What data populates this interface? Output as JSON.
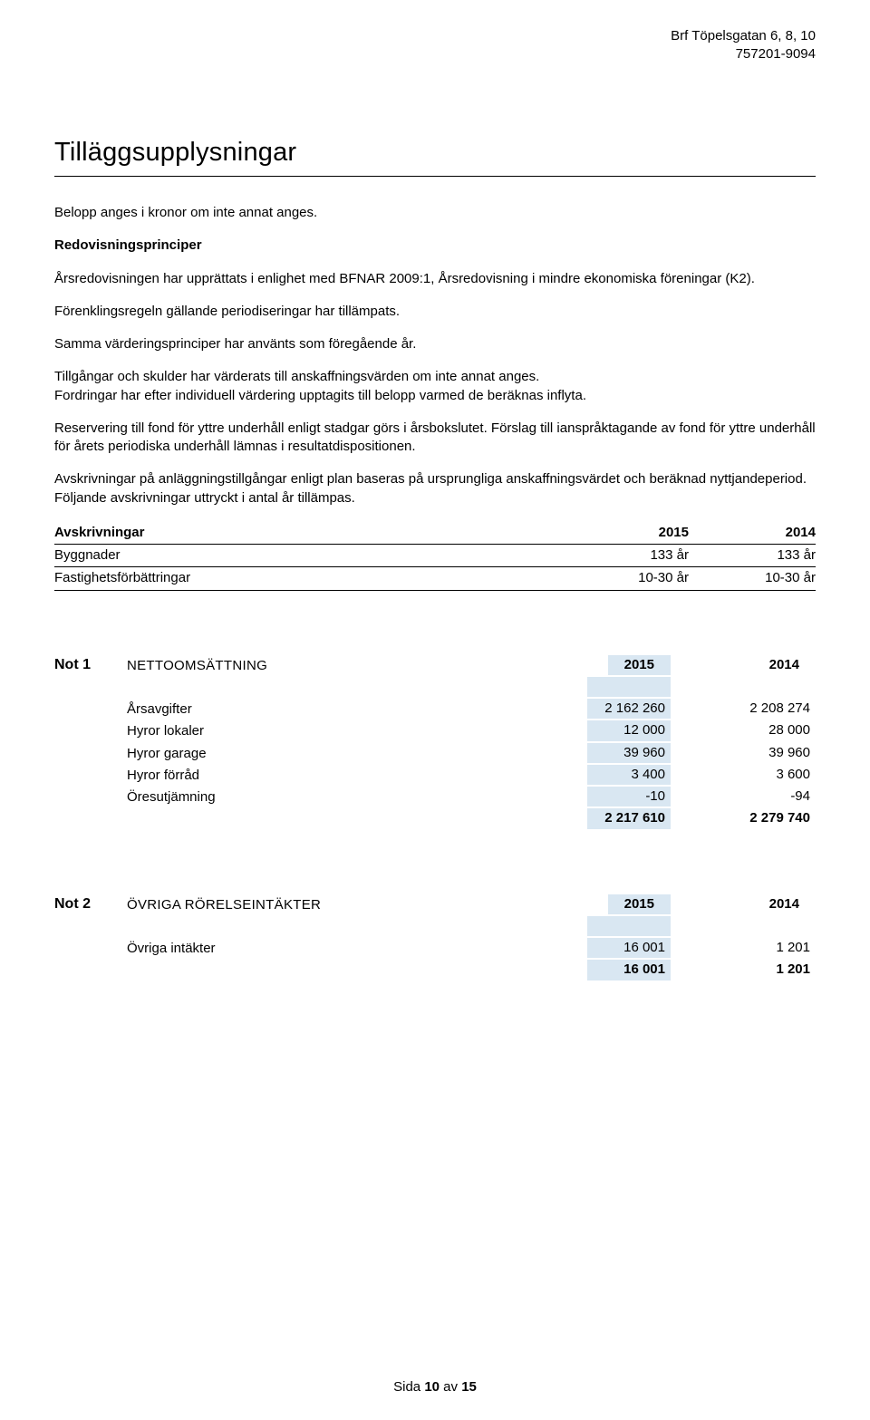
{
  "header": {
    "org_name": "Brf Töpelsgatan 6, 8, 10",
    "org_no": "757201-9094"
  },
  "title": "Tilläggsupplysningar",
  "body": {
    "intro": "Belopp anges i kronor om inte annat anges.",
    "section_heading": "Redovisningsprinciper",
    "p1": "Årsredovisningen har upprättats i enlighet med BFNAR 2009:1, Årsredovisning i mindre ekonomiska föreningar (K2).",
    "p2": "Förenklingsregeln gällande periodiseringar har tillämpats.",
    "p3": "Samma värderingsprinciper har använts som föregående år.",
    "p4a": "Tillgångar och skulder har värderats till anskaffningsvärden om inte annat anges.",
    "p4b": "Fordringar har efter individuell värdering upptagits till belopp varmed de beräknas inflyta.",
    "p5": "Reservering till fond för yttre underhåll enligt stadgar görs i årsbokslutet. Förslag till ianspråktagande av fond för yttre underhåll för årets periodiska underhåll lämnas i resultatdispositionen.",
    "p6": "Avskrivningar på anläggningstillgångar enligt plan baseras på ursprungliga anskaffningsvärdet och beräknad nyttjandeperiod. Följande avskrivningar uttryckt i antal år tillämpas."
  },
  "avskrivningar": {
    "heading": "Avskrivningar",
    "year1": "2015",
    "year2": "2014",
    "rows": [
      {
        "label": "Byggnader",
        "y1": "133 år",
        "y2": "133 år"
      },
      {
        "label": "Fastighetsförbättringar",
        "y1": "10-30 år",
        "y2": "10-30 år"
      }
    ]
  },
  "note1": {
    "label": "Not 1",
    "title": "NETTOOMSÄTTNING",
    "year1": "2015",
    "year2": "2014",
    "rows": [
      {
        "label": "Årsavgifter",
        "y1": "2 162 260",
        "y2": "2 208 274"
      },
      {
        "label": "Hyror lokaler",
        "y1": "12 000",
        "y2": "28 000"
      },
      {
        "label": "Hyror garage",
        "y1": "39 960",
        "y2": "39 960"
      },
      {
        "label": "Hyror förråd",
        "y1": "3 400",
        "y2": "3 600"
      },
      {
        "label": "Öresutjämning",
        "y1": "-10",
        "y2": "-94"
      }
    ],
    "sum": {
      "y1": "2 217 610",
      "y2": "2 279 740"
    }
  },
  "note2": {
    "label": "Not 2",
    "title": "ÖVRIGA RÖRELSEINTÄKTER",
    "year1": "2015",
    "year2": "2014",
    "rows": [
      {
        "label": "Övriga intäkter",
        "y1": "16 001",
        "y2": "1 201"
      }
    ],
    "sum": {
      "y1": "16 001",
      "y2": "1 201"
    }
  },
  "footer": {
    "pre": "Sida ",
    "num": "10",
    "mid": " av ",
    "total": "15"
  },
  "colors": {
    "highlight": "#d9e7f2",
    "text": "#000000",
    "background": "#ffffff",
    "rule": "#000000"
  }
}
